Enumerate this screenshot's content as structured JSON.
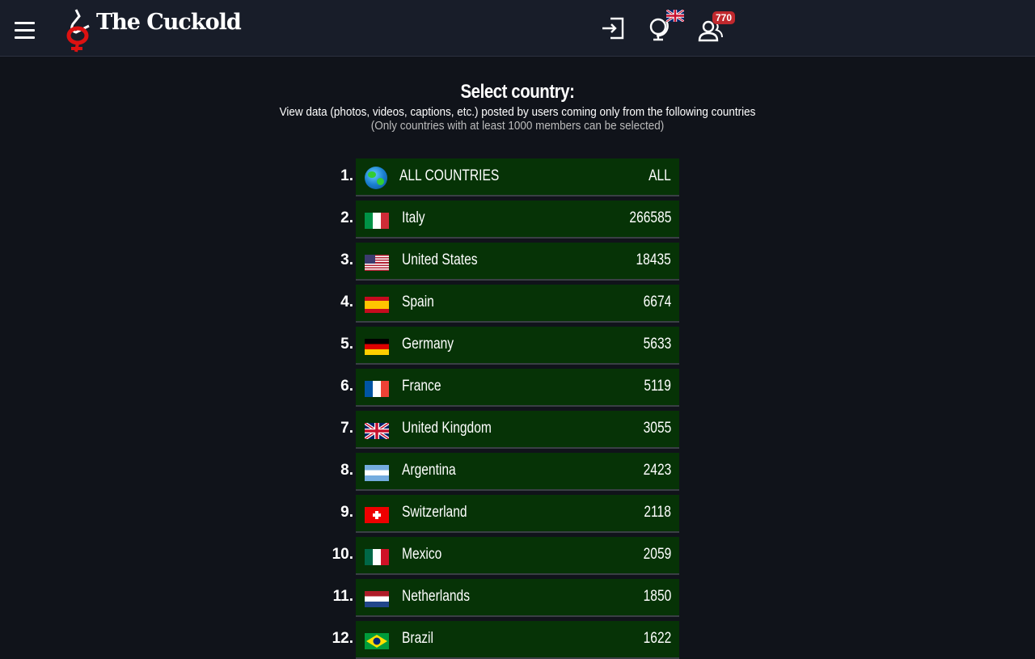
{
  "header": {
    "brand": "The Cuckold",
    "notifications_count": "770"
  },
  "main": {
    "title": "Select country:",
    "subtitle": "View data (photos, videos, captions, etc.) posted by users coming only from the following countries",
    "note": "(Only countries with at least 1000 members can be selected)",
    "countries": [
      {
        "rank": "1.",
        "name": "ALL COUNTRIES",
        "count": "ALL",
        "flag": "globe"
      },
      {
        "rank": "2.",
        "name": "Italy",
        "count": "266585",
        "flag": "it"
      },
      {
        "rank": "3.",
        "name": "United States",
        "count": "18435",
        "flag": "us"
      },
      {
        "rank": "4.",
        "name": "Spain",
        "count": "6674",
        "flag": "es"
      },
      {
        "rank": "5.",
        "name": "Germany",
        "count": "5633",
        "flag": "de"
      },
      {
        "rank": "6.",
        "name": "France",
        "count": "5119",
        "flag": "fr"
      },
      {
        "rank": "7.",
        "name": "United Kingdom",
        "count": "3055",
        "flag": "gb"
      },
      {
        "rank": "8.",
        "name": "Argentina",
        "count": "2423",
        "flag": "ar"
      },
      {
        "rank": "9.",
        "name": "Switzerland",
        "count": "2118",
        "flag": "ch"
      },
      {
        "rank": "10.",
        "name": "Mexico",
        "count": "2059",
        "flag": "mx"
      },
      {
        "rank": "11.",
        "name": "Netherlands",
        "count": "1850",
        "flag": "nl"
      },
      {
        "rank": "12.",
        "name": "Brazil",
        "count": "1622",
        "flag": "br"
      }
    ]
  },
  "colors": {
    "row_bg": "#063306",
    "header_bg": "#181d29",
    "page_bg": "#10131a",
    "badge": "#c0282d"
  }
}
